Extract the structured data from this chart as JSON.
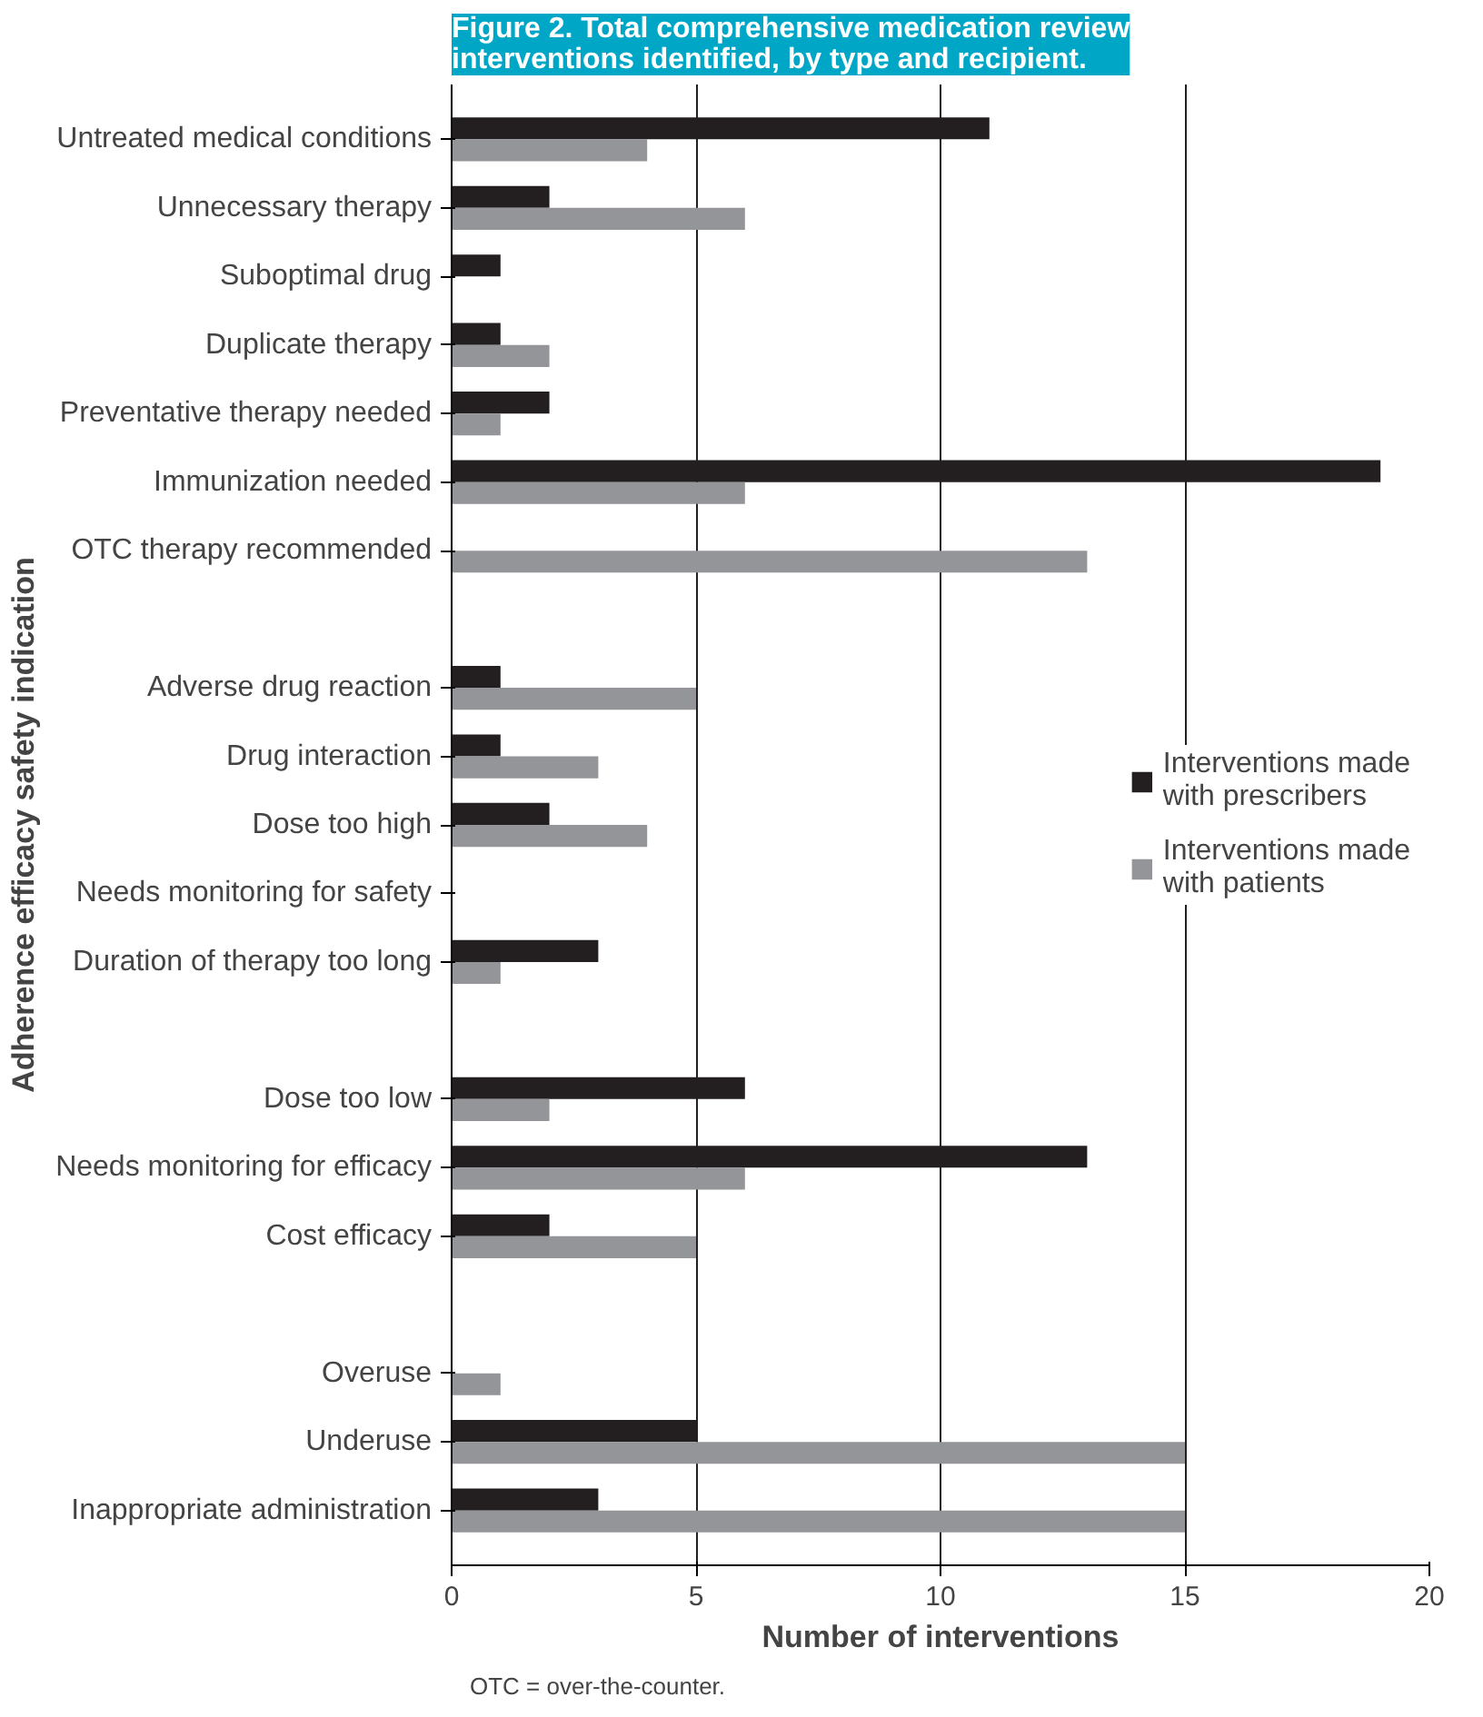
{
  "chart_data": {
    "type": "bar",
    "orientation": "horizontal",
    "title": "Figure 2. Total comprehensive medication review interventions identified, by type and recipient.",
    "xlabel": "Number of interventions",
    "ylabel": "Adherence efficacy safety indication",
    "categories": [
      "Untreated medical conditions",
      "Unnecessary therapy",
      "Suboptimal drug",
      "Duplicate therapy",
      "Preventative therapy needed",
      "Immunization needed",
      "OTC therapy recommended",
      null,
      "Adverse drug reaction",
      "Drug interaction",
      "Dose too high",
      "Needs monitoring for safety",
      "Duration of therapy too long",
      null,
      "Dose too low",
      "Needs monitoring for efficacy",
      "Cost efficacy",
      null,
      "Overuse",
      "Underuse",
      "Inappropriate administration"
    ],
    "series": [
      {
        "name": "Interventions made with prescribers",
        "color": "#231f20",
        "values": [
          11,
          2,
          1,
          1,
          2,
          19,
          0,
          null,
          1,
          1,
          2,
          0,
          3,
          null,
          6,
          13,
          2,
          null,
          0,
          5,
          3
        ]
      },
      {
        "name": "Interventions made with patients",
        "color": "#939598",
        "values": [
          4,
          6,
          0,
          2,
          1,
          6,
          13,
          null,
          5,
          3,
          4,
          0,
          1,
          null,
          2,
          6,
          5,
          null,
          1,
          15,
          15
        ]
      }
    ],
    "xlim": [
      0,
      20
    ],
    "xticks": [
      0,
      5,
      10,
      15,
      20
    ],
    "grid": "x",
    "legend": "right",
    "annotations": [
      "OTC = over-the-counter."
    ]
  }
}
